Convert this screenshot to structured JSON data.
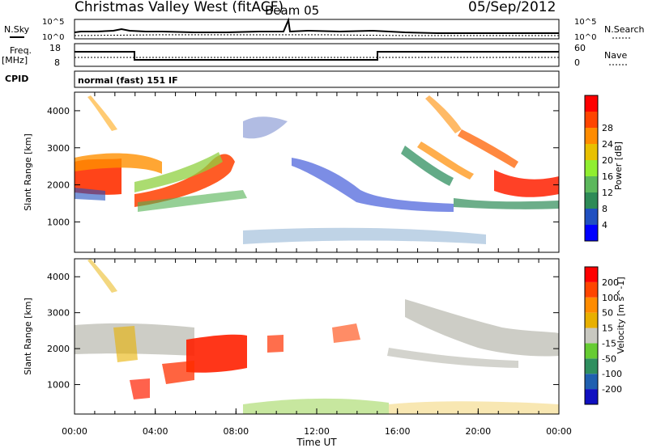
{
  "header": {
    "title": "Christmas Valley West (fitACF)",
    "beam": "Beam 05",
    "date": "05/Sep/2012"
  },
  "strip": {
    "nsky_label": "N.Sky",
    "nsky_ticks": [
      "10^5",
      "10^0"
    ],
    "nsearch_label": "N.Search",
    "nsearch_ticks": [
      "10^5",
      "10^0"
    ],
    "freq_label": "Freq.",
    "freq_unit": "[MHz]",
    "freq_ticks": [
      "18",
      "8"
    ],
    "nave_label": "Nave",
    "nave_ticks": [
      "60",
      "0"
    ],
    "cpid_label": "CPID",
    "cpid_text": "normal (fast) 151 IF"
  },
  "chart_data": [
    {
      "type": "heatmap",
      "name": "power",
      "ylabel": "Slant Range [km]",
      "xlabel": "",
      "ylim": [
        180,
        4500
      ],
      "yticks": [
        "1000",
        "2000",
        "3000",
        "4000"
      ],
      "colorbar": {
        "label": "Power [dB]",
        "ticks": [
          "4",
          "8",
          "12",
          "16",
          "20",
          "24",
          "28"
        ],
        "colors": [
          "#0000ff",
          "#2050c0",
          "#2e8b57",
          "#5cb85c",
          "#90ee30",
          "#e8c000",
          "#ff8c00",
          "#ff4500",
          "#ff0000"
        ]
      }
    },
    {
      "type": "heatmap",
      "name": "velocity",
      "ylabel": "Slant Range [km]",
      "xlabel": "Time UT",
      "ylim": [
        180,
        4500
      ],
      "yticks": [
        "1000",
        "2000",
        "3000",
        "4000"
      ],
      "xticks": [
        "00:00",
        "04:00",
        "08:00",
        "12:00",
        "16:00",
        "20:00",
        "00:00"
      ],
      "colorbar": {
        "label": "Velocity [m s^-1]",
        "ticks": [
          "200",
          "100",
          "50",
          "15",
          "-15",
          "-50",
          "-100",
          "-200"
        ],
        "colors": [
          "#1010c0",
          "#2060b0",
          "#2f8f5f",
          "#66cc33",
          "#c8c8c0",
          "#e8b000",
          "#ff8c00",
          "#ff4500",
          "#ff0000"
        ]
      }
    }
  ]
}
